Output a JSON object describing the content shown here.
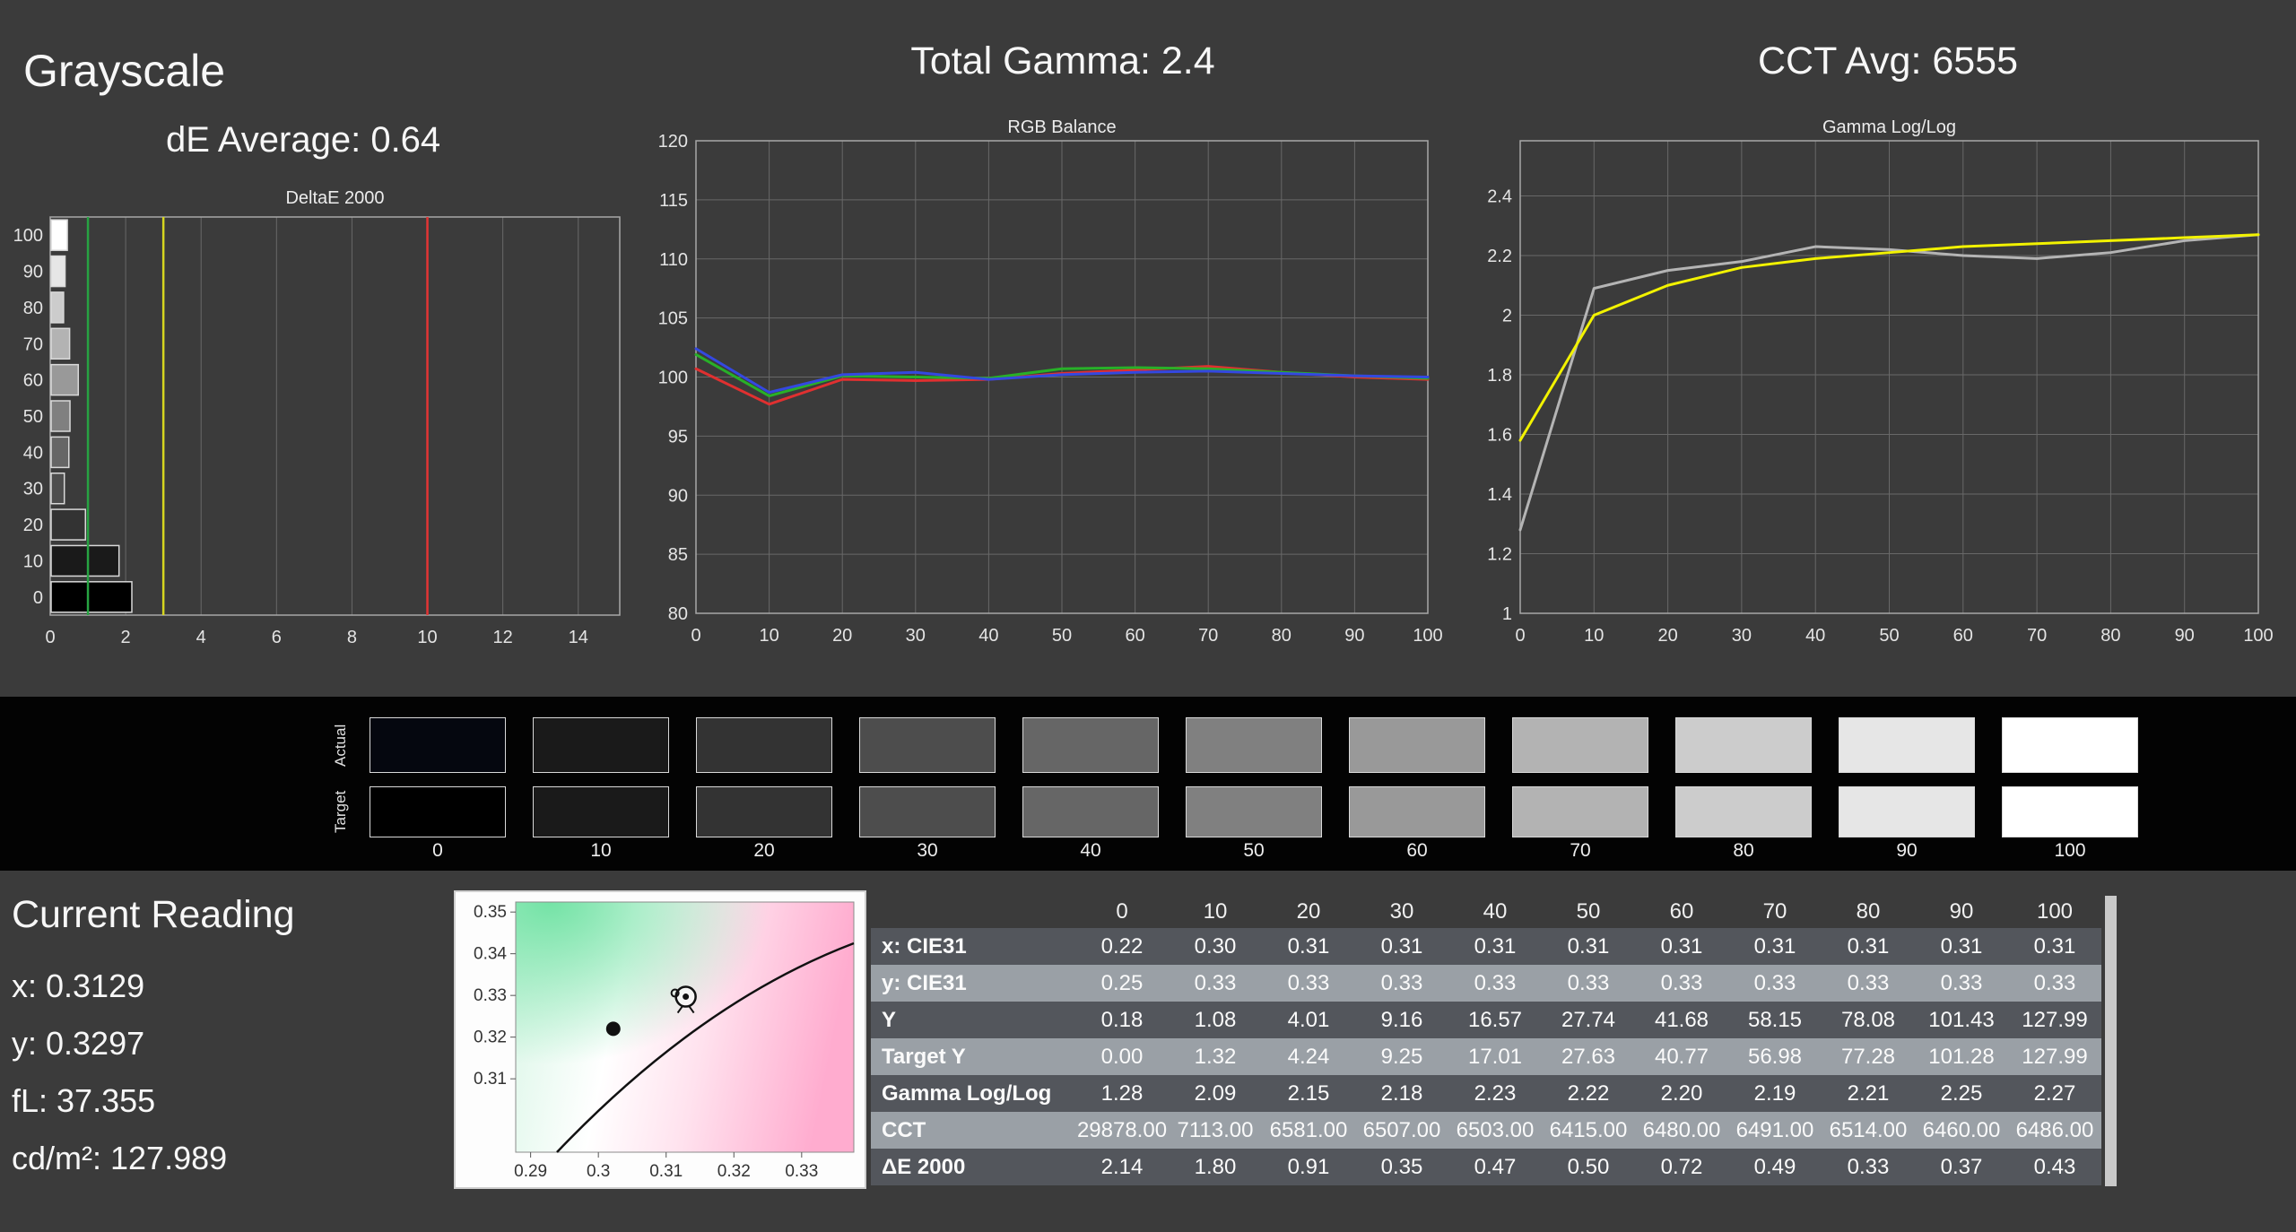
{
  "header": {
    "grayscale_title": "Grayscale",
    "de_average": "dE Average: 0.64",
    "total_gamma": "Total Gamma: 2.4",
    "cct_avg": "CCT Avg: 6555"
  },
  "colors": {
    "background": "#3b3b3b",
    "band": "#030303",
    "grid": "#686868",
    "plot_border": "#a8a8a8",
    "row_dark": "#53565c",
    "row_light": "#9aa0a6"
  },
  "chart_data": [
    {
      "id": "deltae",
      "type": "bar",
      "orientation": "horizontal",
      "title": "DeltaE 2000",
      "categories": [
        100,
        90,
        80,
        70,
        60,
        50,
        40,
        30,
        20,
        10,
        0
      ],
      "values": [
        0.43,
        0.37,
        0.33,
        0.49,
        0.72,
        0.5,
        0.47,
        0.35,
        0.91,
        1.8,
        2.14
      ],
      "bar_colors": [
        "#ffffff",
        "#e6e6e6",
        "#cccccc",
        "#b3b3b3",
        "#999999",
        "#808080",
        "#666666",
        "#4d4d4d",
        "#333333",
        "#1a1a1a",
        "#000000"
      ],
      "xlim": [
        0,
        15.1
      ],
      "xticks": [
        0,
        2,
        4,
        6,
        8,
        10,
        12,
        14
      ],
      "reference_lines": [
        {
          "x": 1,
          "color": "#27a342",
          "label": "green-threshold"
        },
        {
          "x": 3,
          "color": "#d6d61f",
          "label": "yellow-threshold"
        },
        {
          "x": 10,
          "color": "#e23434",
          "label": "red-threshold"
        }
      ]
    },
    {
      "id": "rgb-balance",
      "type": "line",
      "title": "RGB Balance",
      "x": [
        0,
        10,
        20,
        30,
        40,
        50,
        60,
        70,
        80,
        90,
        100
      ],
      "xticks": [
        0,
        10,
        20,
        30,
        40,
        50,
        60,
        70,
        80,
        90,
        100
      ],
      "xlim": [
        0,
        100
      ],
      "ylim": [
        80,
        120
      ],
      "yticks": [
        80,
        85,
        90,
        95,
        100,
        105,
        110,
        115,
        120
      ],
      "series": [
        {
          "name": "Red",
          "color": "#e03030",
          "values": [
            100.7,
            97.7,
            99.8,
            99.7,
            99.8,
            100.3,
            100.6,
            100.9,
            100.4,
            100.0,
            99.8
          ]
        },
        {
          "name": "Green",
          "color": "#28b028",
          "values": [
            101.9,
            98.4,
            100.1,
            100.0,
            99.9,
            100.7,
            100.8,
            100.7,
            100.4,
            100.1,
            99.9
          ]
        },
        {
          "name": "Blue",
          "color": "#3448e0",
          "values": [
            102.4,
            98.7,
            100.2,
            100.4,
            99.8,
            100.2,
            100.4,
            100.5,
            100.3,
            100.1,
            100.0
          ]
        }
      ]
    },
    {
      "id": "gamma-loglog",
      "type": "line",
      "title": "Gamma Log/Log",
      "x": [
        0,
        10,
        20,
        30,
        40,
        50,
        60,
        70,
        80,
        90,
        100
      ],
      "xticks": [
        0,
        10,
        20,
        30,
        40,
        50,
        60,
        70,
        80,
        90,
        100
      ],
      "xlim": [
        0,
        100
      ],
      "ylim": [
        1,
        2.585
      ],
      "yticks": [
        1,
        1.2,
        1.4,
        1.6,
        1.8,
        2,
        2.2,
        2.4
      ],
      "series": [
        {
          "name": "Measured",
          "color": "#b4b4b4",
          "values": [
            1.28,
            2.09,
            2.15,
            2.18,
            2.23,
            2.22,
            2.2,
            2.19,
            2.21,
            2.25,
            2.27
          ]
        },
        {
          "name": "Target",
          "color": "#f2f200",
          "values": [
            1.58,
            2.0,
            2.1,
            2.16,
            2.19,
            2.21,
            2.23,
            2.24,
            2.25,
            2.26,
            2.27
          ]
        }
      ]
    },
    {
      "id": "cie-detail",
      "type": "scatter",
      "title": "",
      "xlim": [
        0.2878,
        0.3377
      ],
      "ylim": [
        0.2924,
        0.3524
      ],
      "xticks": [
        0.29,
        0.3,
        0.31,
        0.32,
        0.33
      ],
      "xtick_labels": [
        "0.29",
        "0.3",
        "0.31",
        "0.32",
        "0.33"
      ],
      "yticks": [
        0.35,
        0.34,
        0.33,
        0.32,
        0.31
      ],
      "ytick_labels": [
        "0.35",
        "0.34",
        "0.33",
        "0.32",
        "0.31"
      ],
      "gradient": [
        "#d9f6e6",
        "#ffffff",
        "#ffe2ee",
        "#ffaccf"
      ],
      "gradient_green": "#74e3a6",
      "points": [
        {
          "name": "measured-dot",
          "x": 0.3022,
          "y": 0.322
        },
        {
          "name": "target-reticle",
          "x": 0.3129,
          "y": 0.3297
        }
      ]
    }
  ],
  "swatches": {
    "actual_label": "Actual",
    "target_label": "Target",
    "levels": [
      "0",
      "10",
      "20",
      "30",
      "40",
      "50",
      "60",
      "70",
      "80",
      "90",
      "100"
    ],
    "actual_colors": [
      "#05070f",
      "#1a1a1a",
      "#333333",
      "#4d4d4d",
      "#666666",
      "#808080",
      "#999999",
      "#b3b3b3",
      "#cccccc",
      "#e6e6e6",
      "#ffffff"
    ],
    "target_colors": [
      "#000000",
      "#1a1a1a",
      "#333333",
      "#4d4d4d",
      "#666666",
      "#808080",
      "#999999",
      "#b3b3b3",
      "#cccccc",
      "#e6e6e6",
      "#ffffff"
    ]
  },
  "current_reading": {
    "title": "Current Reading",
    "x": "x: 0.3129",
    "y": "y: 0.3297",
    "fl": "fL: 37.355",
    "cd": "cd/m²: 127.989"
  },
  "table": {
    "columns": [
      "0",
      "10",
      "20",
      "30",
      "40",
      "50",
      "60",
      "70",
      "80",
      "90",
      "100"
    ],
    "rows": [
      {
        "label": "x: CIE31",
        "values": [
          "0.22",
          "0.30",
          "0.31",
          "0.31",
          "0.31",
          "0.31",
          "0.31",
          "0.31",
          "0.31",
          "0.31",
          "0.31"
        ]
      },
      {
        "label": "y: CIE31",
        "values": [
          "0.25",
          "0.33",
          "0.33",
          "0.33",
          "0.33",
          "0.33",
          "0.33",
          "0.33",
          "0.33",
          "0.33",
          "0.33"
        ]
      },
      {
        "label": "Y",
        "values": [
          "0.18",
          "1.08",
          "4.01",
          "9.16",
          "16.57",
          "27.74",
          "41.68",
          "58.15",
          "78.08",
          "101.43",
          "127.99"
        ]
      },
      {
        "label": "Target Y",
        "values": [
          "0.00",
          "1.32",
          "4.24",
          "9.25",
          "17.01",
          "27.63",
          "40.77",
          "56.98",
          "77.28",
          "101.28",
          "127.99"
        ]
      },
      {
        "label": "Gamma Log/Log",
        "values": [
          "1.28",
          "2.09",
          "2.15",
          "2.18",
          "2.23",
          "2.22",
          "2.20",
          "2.19",
          "2.21",
          "2.25",
          "2.27"
        ]
      },
      {
        "label": "CCT",
        "values": [
          "29878.00",
          "7113.00",
          "6581.00",
          "6507.00",
          "6503.00",
          "6415.00",
          "6480.00",
          "6491.00",
          "6514.00",
          "6460.00",
          "6486.00"
        ]
      },
      {
        "label": "ΔE 2000",
        "values": [
          "2.14",
          "1.80",
          "0.91",
          "0.35",
          "0.47",
          "0.50",
          "0.72",
          "0.49",
          "0.33",
          "0.37",
          "0.43"
        ]
      }
    ]
  }
}
